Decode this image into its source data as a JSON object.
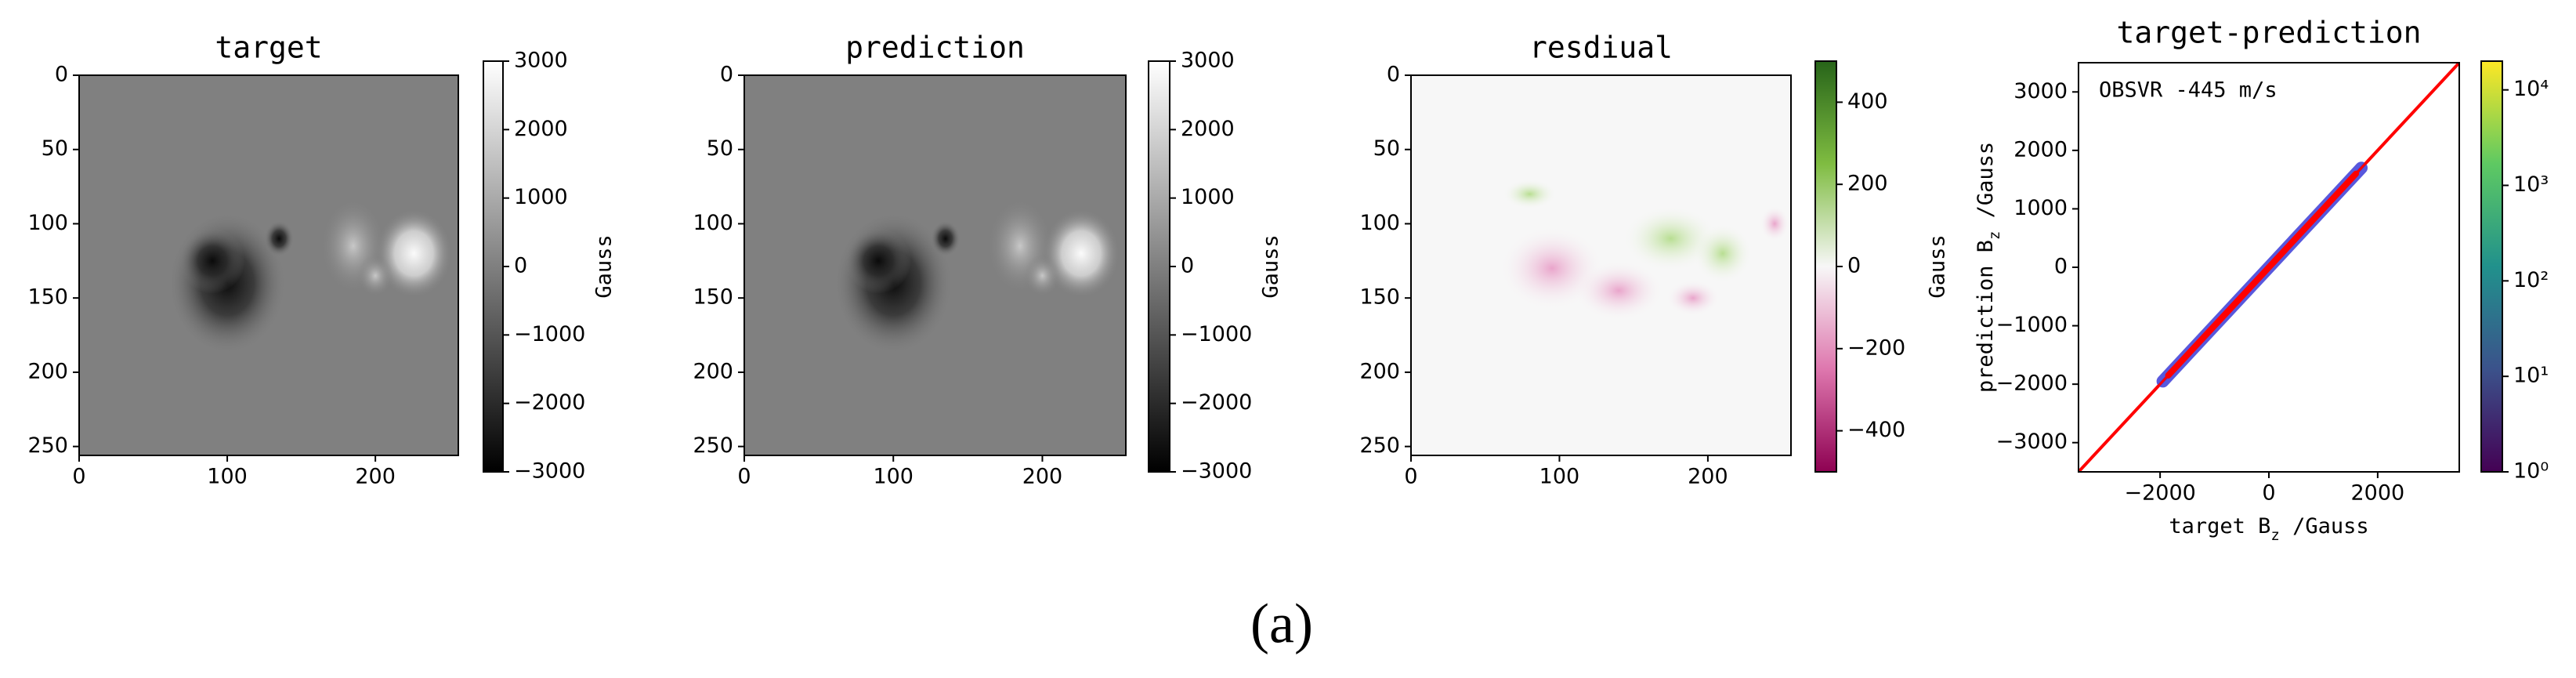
{
  "caption": "(a)",
  "chart_data": [
    {
      "type": "image",
      "title": "target",
      "xlim": [
        0,
        256
      ],
      "ylim": [
        256,
        0
      ],
      "xticks": [
        0,
        100,
        200
      ],
      "yticks": [
        0,
        50,
        100,
        150,
        200,
        250
      ],
      "colorbar": {
        "label": "Gauss",
        "colormap": "gray",
        "lim": [
          -3000,
          3000
        ],
        "ticks": [
          {
            "value": -3000,
            "label": "−3000"
          },
          {
            "value": -2000,
            "label": "−2000"
          },
          {
            "value": -1000,
            "label": "−1000"
          },
          0,
          1000,
          2000,
          3000
        ]
      }
    },
    {
      "type": "image",
      "title": "prediction",
      "xlim": [
        0,
        256
      ],
      "ylim": [
        256,
        0
      ],
      "xticks": [
        0,
        100,
        200
      ],
      "yticks": [
        0,
        50,
        100,
        150,
        200,
        250
      ],
      "colorbar": {
        "label": "Gauss",
        "colormap": "gray",
        "lim": [
          -3000,
          3000
        ],
        "ticks": [
          {
            "value": -3000,
            "label": "−3000"
          },
          {
            "value": -2000,
            "label": "−2000"
          },
          {
            "value": -1000,
            "label": "−1000"
          },
          0,
          1000,
          2000,
          3000
        ]
      }
    },
    {
      "type": "image",
      "title": "resdiual",
      "xlim": [
        0,
        256
      ],
      "ylim": [
        256,
        0
      ],
      "xticks": [
        0,
        100,
        200
      ],
      "yticks": [
        0,
        50,
        100,
        150,
        200,
        250
      ],
      "colorbar": {
        "label": "Gauss",
        "colormap": "PiYG",
        "lim": [
          -500,
          500
        ],
        "ticks": [
          {
            "value": -400,
            "label": "−400"
          },
          {
            "value": -200,
            "label": "−200"
          },
          0,
          200,
          400
        ]
      }
    },
    {
      "type": "hist2d",
      "title": "target-prediction",
      "annotation": "OBSVR -445 m/s",
      "xlabel": {
        "main": "target B",
        "sub": "z",
        "rest": " /Gauss"
      },
      "ylabel": {
        "main": "prediction B",
        "sub": "z",
        "rest": " /Gauss"
      },
      "xlim": [
        -3500,
        3500
      ],
      "ylim": [
        -3500,
        3500
      ],
      "xticks": [
        {
          "value": -2000,
          "label": "−2000"
        },
        0,
        2000
      ],
      "yticks": [
        {
          "value": -3000,
          "label": "−3000"
        },
        {
          "value": -2000,
          "label": "−2000"
        },
        {
          "value": -1000,
          "label": "−1000"
        },
        0,
        1000,
        2000,
        3000
      ],
      "line_color": "#ff0000",
      "colorbar": {
        "colormap": "viridis",
        "log": true,
        "lim": [
          1,
          20000
        ],
        "ticks": [
          {
            "value": 1,
            "label": "10⁰"
          },
          {
            "value": 10,
            "label": "10¹"
          },
          {
            "value": 100,
            "label": "10²"
          },
          {
            "value": 1000,
            "label": "10³"
          },
          {
            "value": 10000,
            "label": "10⁴"
          }
        ]
      }
    }
  ]
}
